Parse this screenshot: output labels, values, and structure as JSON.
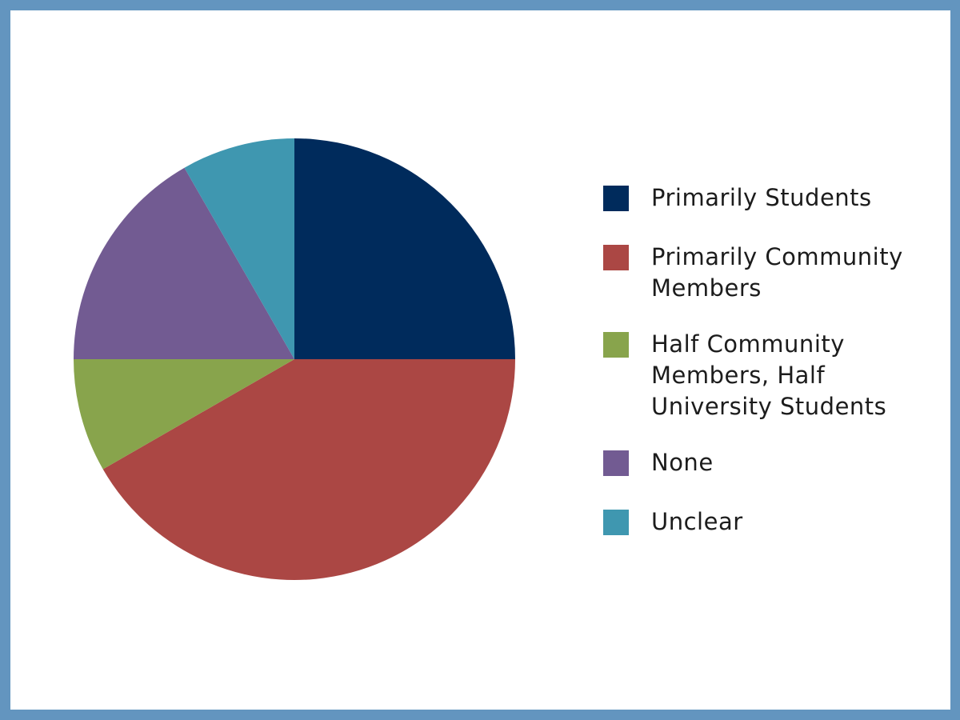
{
  "chart_data": {
    "type": "pie",
    "title": "",
    "labels": [
      "Primarily Students",
      "Primarily Community Members",
      "Half Community Members, Half University Students",
      "None",
      "Unclear"
    ],
    "values": [
      25,
      41.7,
      8.3,
      16.7,
      8.3
    ],
    "colors": [
      "#002b5c",
      "#ab4744",
      "#88a44c",
      "#725b92",
      "#3f97b0"
    ],
    "start": "12 o'clock",
    "direction": "clockwise",
    "legend_position": "right",
    "legend": {
      "items": [
        {
          "label": "Primarily Students",
          "color": "#002b5c"
        },
        {
          "label": "Primarily Community Members",
          "color": "#ab4744"
        },
        {
          "label": "Half Community Members, Half University Students",
          "color": "#88a44c"
        },
        {
          "label": "None",
          "color": "#725b92"
        },
        {
          "label": "Unclear",
          "color": "#3f97b0"
        }
      ]
    }
  },
  "frame_color": "#6395bf"
}
